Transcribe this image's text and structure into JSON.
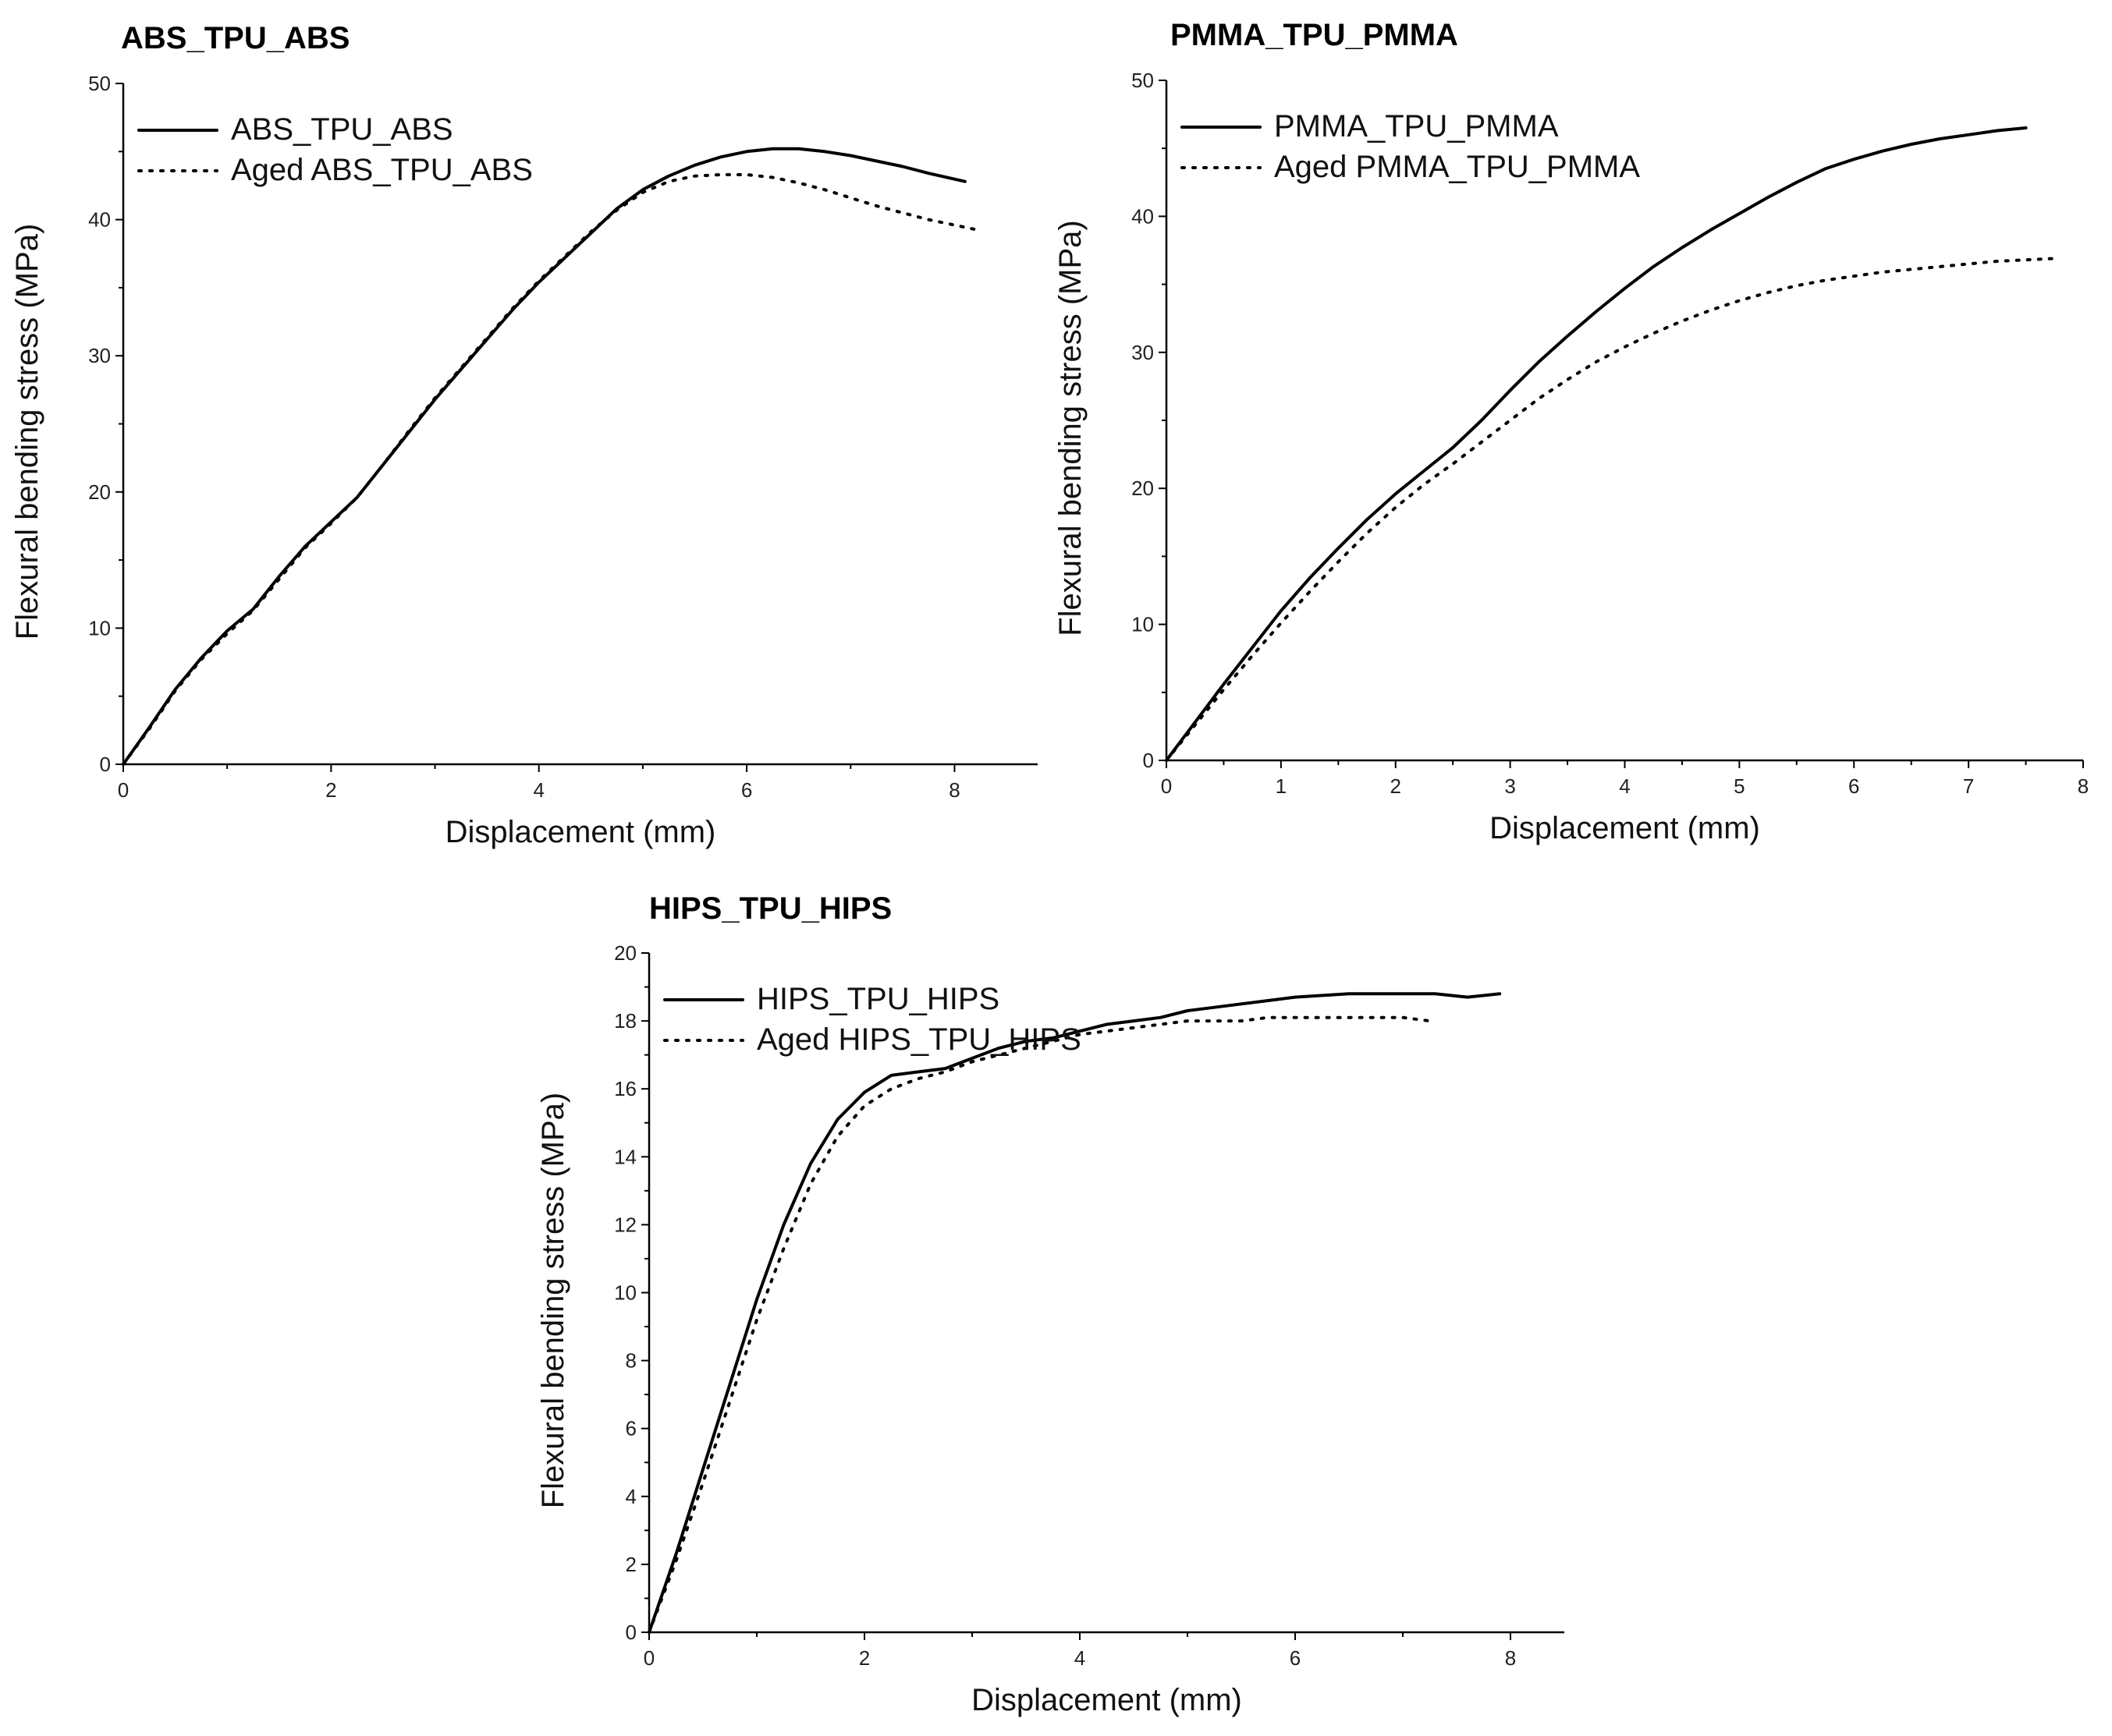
{
  "chart_data": [
    {
      "type": "line",
      "title": "ABS_TPU_ABS",
      "xlabel": "Displacement (mm)",
      "ylabel": "Flexural bending stress (MPa)",
      "xlim": [
        0,
        8.8
      ],
      "ylim": [
        0,
        50
      ],
      "xticks": [
        0,
        2,
        4,
        6,
        8
      ],
      "yticks": [
        0,
        10,
        20,
        30,
        40,
        50
      ],
      "legend": "top-left",
      "series": [
        {
          "name": "ABS_TPU_ABS",
          "style": "solid",
          "x": [
            0,
            0.25,
            0.5,
            0.75,
            1.0,
            1.25,
            1.5,
            1.75,
            2.0,
            2.25,
            2.5,
            2.75,
            3.0,
            3.25,
            3.5,
            3.75,
            4.0,
            4.25,
            4.5,
            4.75,
            5.0,
            5.25,
            5.5,
            5.75,
            6.0,
            6.25,
            6.5,
            6.75,
            7.0,
            7.25,
            7.5,
            7.75,
            8.1
          ],
          "y": [
            0,
            2.7,
            5.5,
            7.8,
            9.8,
            11.4,
            13.8,
            16.0,
            17.8,
            19.6,
            22.0,
            24.4,
            26.8,
            29.0,
            31.2,
            33.4,
            35.4,
            37.2,
            39.0,
            40.8,
            42.2,
            43.2,
            44.0,
            44.6,
            45.0,
            45.2,
            45.2,
            45.0,
            44.7,
            44.3,
            43.9,
            43.4,
            42.8
          ]
        },
        {
          "name": "Aged ABS_TPU_ABS",
          "style": "dotted",
          "x": [
            0,
            0.25,
            0.5,
            0.75,
            1.0,
            1.25,
            1.5,
            1.75,
            2.0,
            2.25,
            2.5,
            2.75,
            3.0,
            3.25,
            3.5,
            3.75,
            4.0,
            4.25,
            4.5,
            4.75,
            5.0,
            5.25,
            5.5,
            5.75,
            6.0,
            6.25,
            6.5,
            6.75,
            7.0,
            7.25,
            7.5,
            7.75,
            8.0,
            8.25
          ],
          "y": [
            0,
            2.6,
            5.4,
            7.7,
            9.6,
            11.3,
            13.6,
            15.9,
            17.7,
            19.6,
            22.0,
            24.5,
            26.9,
            29.1,
            31.3,
            33.5,
            35.5,
            37.3,
            39.1,
            40.7,
            42.0,
            42.8,
            43.2,
            43.3,
            43.3,
            43.1,
            42.7,
            42.2,
            41.6,
            41.0,
            40.5,
            40.0,
            39.6,
            39.2
          ]
        }
      ]
    },
    {
      "type": "line",
      "title": "PMMA_TPU_PMMA",
      "xlabel": "Displacement (mm)",
      "ylabel": "Flexural bending stress (MPa)",
      "xlim": [
        0,
        8
      ],
      "ylim": [
        0,
        50
      ],
      "xticks": [
        0,
        1,
        2,
        3,
        4,
        5,
        6,
        7,
        8
      ],
      "yticks": [
        0,
        10,
        20,
        30,
        40,
        50
      ],
      "legend": "top-left",
      "series": [
        {
          "name": "PMMA_TPU_PMMA",
          "style": "solid",
          "x": [
            0,
            0.25,
            0.5,
            0.75,
            1.0,
            1.25,
            1.5,
            1.75,
            2.0,
            2.25,
            2.5,
            2.75,
            3.0,
            3.25,
            3.5,
            3.75,
            4.0,
            4.25,
            4.5,
            4.75,
            5.0,
            5.25,
            5.5,
            5.75,
            6.0,
            6.25,
            6.5,
            6.75,
            7.0,
            7.25,
            7.5
          ],
          "y": [
            0,
            2.8,
            5.6,
            8.3,
            11.0,
            13.4,
            15.6,
            17.7,
            19.6,
            21.3,
            23.0,
            25.0,
            27.2,
            29.3,
            31.2,
            33.0,
            34.7,
            36.3,
            37.7,
            39.0,
            40.2,
            41.4,
            42.5,
            43.5,
            44.2,
            44.8,
            45.3,
            45.7,
            46.0,
            46.3,
            46.5
          ]
        },
        {
          "name": "Aged PMMA_TPU_PMMA",
          "style": "dotted",
          "x": [
            0,
            0.25,
            0.5,
            0.75,
            1.0,
            1.25,
            1.5,
            1.75,
            2.0,
            2.25,
            2.5,
            2.75,
            3.0,
            3.25,
            3.5,
            3.75,
            4.0,
            4.25,
            4.5,
            4.75,
            5.0,
            5.25,
            5.5,
            5.75,
            6.0,
            6.25,
            6.5,
            6.75,
            7.0,
            7.25,
            7.5,
            7.75
          ],
          "y": [
            0,
            2.6,
            5.2,
            7.7,
            10.1,
            12.4,
            14.6,
            16.7,
            18.6,
            20.3,
            21.8,
            23.4,
            25.0,
            26.6,
            28.0,
            29.3,
            30.4,
            31.4,
            32.3,
            33.1,
            33.8,
            34.4,
            34.9,
            35.3,
            35.6,
            35.9,
            36.1,
            36.3,
            36.5,
            36.7,
            36.8,
            36.9
          ]
        }
      ]
    },
    {
      "type": "line",
      "title": "HIPS_TPU_HIPS",
      "xlabel": "Displacement (mm)",
      "ylabel": "Flexural bending stress (MPa)",
      "xlim": [
        0,
        8.5
      ],
      "ylim": [
        0,
        20
      ],
      "xticks": [
        0,
        2,
        4,
        6,
        8
      ],
      "yticks": [
        0,
        2,
        4,
        6,
        8,
        10,
        12,
        14,
        16,
        18,
        20
      ],
      "legend": "top-left",
      "series": [
        {
          "name": "HIPS_TPU_HIPS",
          "style": "solid",
          "x": [
            0,
            0.25,
            0.5,
            0.75,
            1.0,
            1.25,
            1.5,
            1.75,
            2.0,
            2.25,
            2.5,
            2.75,
            3.0,
            3.25,
            3.5,
            3.75,
            4.0,
            4.25,
            4.5,
            4.75,
            5.0,
            5.25,
            5.5,
            5.75,
            6.0,
            6.5,
            7.0,
            7.3,
            7.6,
            7.9
          ],
          "y": [
            0,
            2.3,
            4.8,
            7.3,
            9.8,
            12.0,
            13.8,
            15.1,
            15.9,
            16.4,
            16.5,
            16.6,
            16.9,
            17.2,
            17.4,
            17.5,
            17.7,
            17.9,
            18.0,
            18.1,
            18.3,
            18.4,
            18.5,
            18.6,
            18.7,
            18.8,
            18.8,
            18.8,
            18.7,
            18.8
          ]
        },
        {
          "name": "Aged HIPS_TPU_HIPS",
          "style": "dotted",
          "x": [
            0,
            0.25,
            0.5,
            0.75,
            1.0,
            1.25,
            1.5,
            1.75,
            2.0,
            2.25,
            2.5,
            2.75,
            3.0,
            3.25,
            3.5,
            3.75,
            4.0,
            4.25,
            4.5,
            4.75,
            5.0,
            5.25,
            5.5,
            5.75,
            6.0,
            6.5,
            7.0,
            7.25
          ],
          "y": [
            0,
            2.1,
            4.4,
            6.8,
            9.2,
            11.3,
            13.2,
            14.6,
            15.5,
            16.0,
            16.3,
            16.5,
            16.8,
            17.0,
            17.2,
            17.4,
            17.6,
            17.7,
            17.8,
            17.9,
            18.0,
            18.0,
            18.0,
            18.1,
            18.1,
            18.1,
            18.1,
            18.0
          ]
        }
      ]
    }
  ]
}
